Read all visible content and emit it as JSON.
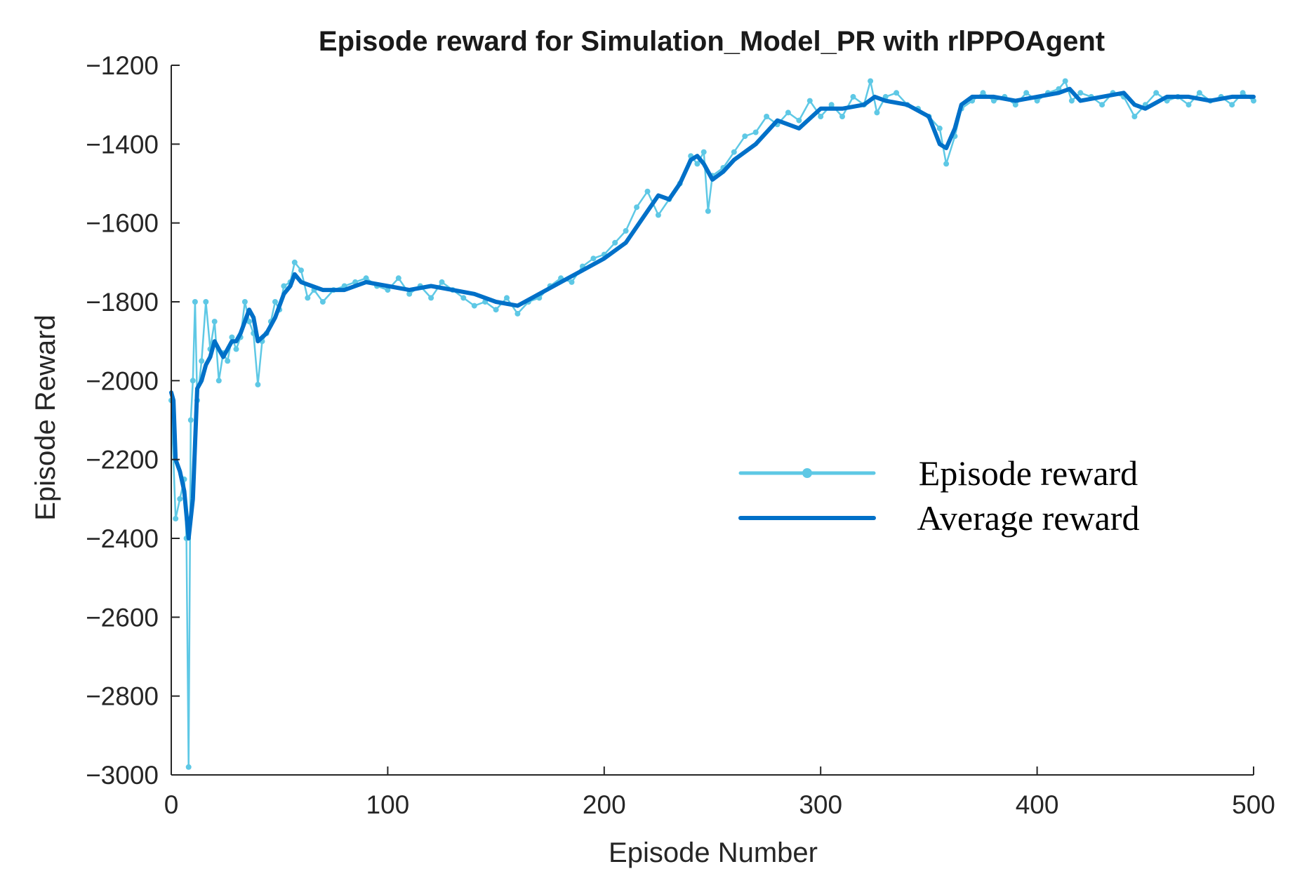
{
  "chart_data": {
    "type": "line",
    "title": "Episode reward for Simulation_Model_PR with rlPPOAgent",
    "xlabel": "Episode Number",
    "ylabel": "Episode Reward",
    "xlim": [
      0,
      500
    ],
    "ylim": [
      -3000,
      -1200
    ],
    "xticks": [
      0,
      100,
      200,
      300,
      400,
      500
    ],
    "yticks": [
      -3000,
      -2800,
      -2600,
      -2400,
      -2200,
      -2000,
      -1800,
      -1600,
      -1400,
      -1200
    ],
    "xtick_labels": [
      "0",
      "100",
      "200",
      "300",
      "400",
      "500"
    ],
    "ytick_labels": [
      "−3000",
      "−2800",
      "−2600",
      "−2400",
      "−2200",
      "−2000",
      "−1800",
      "−1600",
      "−1400",
      "−1200"
    ],
    "grid": false,
    "legend_position": "center-right",
    "series": [
      {
        "name": "Episode reward",
        "color": "#5ec8e5",
        "marker": "dot",
        "x": [
          0,
          2,
          4,
          6,
          7,
          8,
          9,
          10,
          11,
          12,
          14,
          16,
          18,
          20,
          22,
          24,
          26,
          28,
          30,
          32,
          34,
          36,
          38,
          40,
          42,
          44,
          46,
          48,
          50,
          52,
          55,
          57,
          60,
          63,
          66,
          70,
          75,
          80,
          85,
          90,
          95,
          100,
          105,
          110,
          115,
          120,
          125,
          130,
          135,
          140,
          145,
          150,
          155,
          160,
          165,
          170,
          175,
          180,
          185,
          190,
          195,
          200,
          205,
          210,
          215,
          220,
          225,
          230,
          235,
          240,
          243,
          246,
          248,
          250,
          255,
          260,
          265,
          270,
          275,
          280,
          285,
          290,
          295,
          300,
          305,
          310,
          315,
          320,
          323,
          326,
          330,
          335,
          340,
          345,
          350,
          355,
          358,
          362,
          365,
          370,
          375,
          380,
          385,
          390,
          395,
          400,
          405,
          410,
          413,
          416,
          420,
          425,
          430,
          435,
          440,
          445,
          450,
          455,
          460,
          465,
          470,
          475,
          480,
          485,
          490,
          495,
          500
        ],
        "y": [
          -2050,
          -2350,
          -2300,
          -2250,
          -2400,
          -2980,
          -2100,
          -2000,
          -1800,
          -2050,
          -1950,
          -1800,
          -1920,
          -1850,
          -2000,
          -1930,
          -1950,
          -1890,
          -1920,
          -1890,
          -1800,
          -1850,
          -1880,
          -2010,
          -1900,
          -1880,
          -1850,
          -1800,
          -1820,
          -1760,
          -1750,
          -1700,
          -1720,
          -1790,
          -1770,
          -1800,
          -1770,
          -1760,
          -1750,
          -1740,
          -1760,
          -1770,
          -1740,
          -1780,
          -1760,
          -1790,
          -1750,
          -1770,
          -1790,
          -1810,
          -1800,
          -1820,
          -1790,
          -1830,
          -1800,
          -1790,
          -1760,
          -1740,
          -1750,
          -1710,
          -1690,
          -1680,
          -1650,
          -1620,
          -1560,
          -1520,
          -1580,
          -1540,
          -1500,
          -1430,
          -1450,
          -1420,
          -1570,
          -1480,
          -1460,
          -1420,
          -1380,
          -1370,
          -1330,
          -1350,
          -1320,
          -1340,
          -1290,
          -1330,
          -1300,
          -1330,
          -1280,
          -1300,
          -1240,
          -1320,
          -1280,
          -1270,
          -1300,
          -1310,
          -1330,
          -1360,
          -1450,
          -1380,
          -1310,
          -1290,
          -1270,
          -1290,
          -1280,
          -1300,
          -1270,
          -1290,
          -1270,
          -1260,
          -1240,
          -1290,
          -1270,
          -1280,
          -1300,
          -1270,
          -1280,
          -1330,
          -1300,
          -1270,
          -1290,
          -1280,
          -1300,
          -1270,
          -1290,
          -1280,
          -1300,
          -1270,
          -1290
        ]
      },
      {
        "name": "Average reward",
        "color": "#0070c8",
        "marker": "none",
        "x": [
          0,
          1,
          2,
          4,
          6,
          8,
          10,
          12,
          14,
          16,
          18,
          20,
          22,
          24,
          26,
          28,
          30,
          32,
          34,
          36,
          38,
          40,
          42,
          44,
          46,
          48,
          50,
          52,
          55,
          57,
          60,
          65,
          70,
          80,
          90,
          100,
          110,
          120,
          130,
          140,
          150,
          160,
          170,
          180,
          190,
          200,
          210,
          220,
          225,
          230,
          235,
          240,
          243,
          246,
          250,
          255,
          260,
          270,
          280,
          290,
          300,
          310,
          320,
          325,
          330,
          340,
          350,
          355,
          358,
          362,
          365,
          370,
          380,
          390,
          400,
          410,
          415,
          420,
          430,
          440,
          445,
          450,
          460,
          470,
          480,
          490,
          500
        ],
        "y": [
          -2030,
          -2050,
          -2200,
          -2230,
          -2280,
          -2400,
          -2300,
          -2020,
          -2000,
          -1960,
          -1940,
          -1900,
          -1920,
          -1940,
          -1920,
          -1900,
          -1900,
          -1880,
          -1850,
          -1820,
          -1840,
          -1900,
          -1890,
          -1880,
          -1860,
          -1840,
          -1810,
          -1780,
          -1760,
          -1730,
          -1750,
          -1760,
          -1770,
          -1770,
          -1750,
          -1760,
          -1770,
          -1760,
          -1770,
          -1780,
          -1800,
          -1810,
          -1780,
          -1750,
          -1720,
          -1690,
          -1650,
          -1570,
          -1530,
          -1540,
          -1500,
          -1440,
          -1430,
          -1450,
          -1490,
          -1470,
          -1440,
          -1400,
          -1340,
          -1360,
          -1310,
          -1310,
          -1300,
          -1280,
          -1290,
          -1300,
          -1330,
          -1400,
          -1410,
          -1360,
          -1300,
          -1280,
          -1280,
          -1290,
          -1280,
          -1270,
          -1260,
          -1290,
          -1280,
          -1270,
          -1300,
          -1310,
          -1280,
          -1280,
          -1290,
          -1280,
          -1280
        ]
      }
    ]
  }
}
